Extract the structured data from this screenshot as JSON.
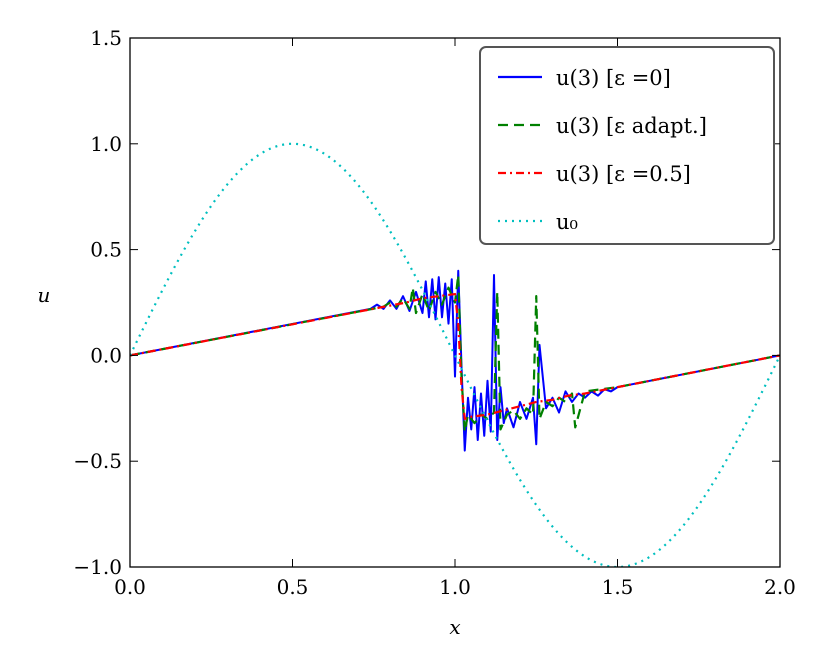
{
  "chart_data": {
    "type": "line",
    "title": "",
    "xlabel": "x",
    "ylabel": "u",
    "xlim": [
      0.0,
      2.0
    ],
    "ylim": [
      -1.0,
      1.5
    ],
    "xticks": [
      0.0,
      0.5,
      1.0,
      1.5,
      2.0
    ],
    "xtick_labels": [
      "0.0",
      "0.5",
      "1.0",
      "1.5",
      "2.0"
    ],
    "yticks": [
      -1.0,
      -0.5,
      0.0,
      0.5,
      1.0,
      1.5
    ],
    "ytick_labels": [
      "−1.0",
      "−0.5",
      "0.0",
      "0.5",
      "1.0",
      "1.5"
    ],
    "legend_position": "top-right",
    "series": [
      {
        "name": "u(3) [ε =0]",
        "color": "#0000ff",
        "style": "solid",
        "x": [
          0.0,
          0.74,
          0.76,
          0.78,
          0.8,
          0.82,
          0.84,
          0.86,
          0.88,
          0.9,
          0.91,
          0.92,
          0.93,
          0.94,
          0.95,
          0.96,
          0.97,
          0.98,
          0.99,
          1.0,
          1.01,
          1.02,
          1.03,
          1.04,
          1.05,
          1.06,
          1.07,
          1.08,
          1.09,
          1.1,
          1.11,
          1.12,
          1.13,
          1.14,
          1.15,
          1.16,
          1.18,
          1.2,
          1.22,
          1.24,
          1.25,
          1.26,
          1.28,
          1.3,
          1.32,
          1.34,
          1.36,
          1.38,
          1.4,
          1.42,
          1.44,
          1.46,
          1.48,
          1.5,
          2.0
        ],
        "y": [
          0.0,
          0.22,
          0.24,
          0.22,
          0.26,
          0.22,
          0.28,
          0.21,
          0.3,
          0.2,
          0.35,
          0.18,
          0.36,
          0.17,
          0.37,
          0.18,
          0.34,
          0.15,
          0.36,
          -0.1,
          0.4,
          -0.05,
          -0.45,
          -0.2,
          -0.35,
          -0.15,
          -0.4,
          -0.18,
          -0.38,
          -0.12,
          -0.36,
          0.38,
          -0.4,
          -0.15,
          -0.32,
          -0.25,
          -0.34,
          -0.22,
          -0.3,
          -0.2,
          -0.42,
          0.05,
          -0.25,
          -0.2,
          -0.27,
          -0.17,
          -0.22,
          -0.18,
          -0.2,
          -0.17,
          -0.19,
          -0.16,
          -0.17,
          -0.15,
          0.0
        ]
      },
      {
        "name": "u(3) [ε adapt.]",
        "color": "#008000",
        "style": "dashed",
        "x": [
          0.0,
          0.78,
          0.8,
          0.82,
          0.84,
          0.86,
          0.87,
          0.88,
          0.9,
          0.92,
          0.94,
          0.96,
          0.98,
          1.0,
          1.01,
          1.02,
          1.03,
          1.04,
          1.06,
          1.08,
          1.1,
          1.12,
          1.13,
          1.14,
          1.16,
          1.18,
          1.2,
          1.22,
          1.24,
          1.25,
          1.26,
          1.28,
          1.3,
          1.32,
          1.34,
          1.36,
          1.37,
          1.4,
          1.45,
          1.5,
          2.0
        ],
        "y": [
          0.0,
          0.23,
          0.25,
          0.23,
          0.27,
          0.22,
          0.32,
          0.2,
          0.29,
          0.21,
          0.3,
          0.24,
          0.32,
          0.25,
          0.38,
          -0.1,
          -0.36,
          -0.28,
          -0.32,
          -0.28,
          -0.3,
          -0.27,
          0.3,
          -0.35,
          -0.28,
          -0.26,
          -0.3,
          -0.25,
          -0.28,
          0.28,
          -0.3,
          -0.22,
          -0.24,
          -0.2,
          -0.22,
          -0.18,
          -0.34,
          -0.17,
          -0.16,
          -0.15,
          0.0
        ]
      },
      {
        "name": "u(3) [ε =0.5]",
        "color": "#ff0000",
        "style": "dashdot",
        "x": [
          0.0,
          0.85,
          0.9,
          0.95,
          1.0,
          1.01,
          1.02,
          1.03,
          1.05,
          1.1,
          1.15,
          1.2,
          1.25,
          1.3,
          1.35,
          1.4,
          1.5,
          2.0
        ],
        "y": [
          0.0,
          0.25,
          0.27,
          0.28,
          0.29,
          0.15,
          -0.15,
          -0.3,
          -0.29,
          -0.28,
          -0.26,
          -0.24,
          -0.22,
          -0.21,
          -0.19,
          -0.18,
          -0.15,
          0.0
        ]
      },
      {
        "name": "u₀",
        "color": "#00bfbf",
        "style": "dotted",
        "function": "sin(pi*x)"
      }
    ]
  }
}
